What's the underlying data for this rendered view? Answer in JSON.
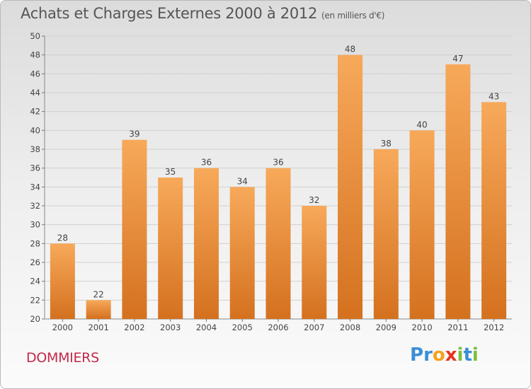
{
  "title": "Achats et Charges Externes 2000 à 2012",
  "unit": "(en milliers d'€)",
  "town": "DOMMIERS",
  "logo": {
    "text": "Proxiti",
    "letters": [
      {
        "ch": "P",
        "color": "#3a8fd6"
      },
      {
        "ch": "r",
        "color": "#3a8fd6"
      },
      {
        "ch": "o",
        "color": "#f5a21b"
      },
      {
        "ch": "x",
        "color": "#e8321e"
      },
      {
        "ch": "i",
        "color": "#7bbf3a"
      },
      {
        "ch": "t",
        "color": "#3a8fd6"
      },
      {
        "ch": "i",
        "color": "#7bbf3a"
      }
    ]
  },
  "colors": {
    "bar_top": "#f7a95a",
    "bar_bottom": "#d4711f",
    "grid": "#d0d0d0",
    "text": "#444444"
  },
  "chart_data": {
    "type": "bar",
    "categories": [
      "2000",
      "2001",
      "2002",
      "2003",
      "2004",
      "2005",
      "2006",
      "2007",
      "2008",
      "2009",
      "2010",
      "2011",
      "2012"
    ],
    "values": [
      28,
      22,
      39,
      35,
      36,
      34,
      36,
      32,
      48,
      38,
      40,
      47,
      43
    ],
    "ylim": [
      20,
      50
    ],
    "yticks": [
      20,
      22,
      24,
      26,
      28,
      30,
      32,
      34,
      36,
      38,
      40,
      42,
      44,
      46,
      48,
      50
    ],
    "grid": true,
    "legend": "none"
  }
}
